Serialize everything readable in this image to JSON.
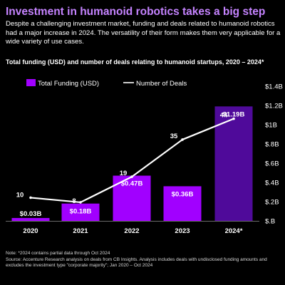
{
  "headline": "Investment in humanoid robotics takes a big step",
  "subhead": "Despite a challenging investment market, funding and deals related to humanoid robotics had a major increase in 2024. The versatility of their form makes them very applicable for a wide variety of use cases.",
  "footnotes": [
    "Note: *2024 contains partial data through Oct 2024",
    "Source: Accenture Research analysis on deals from CB Insights. Analysis includes deals with undisclosed funding amounts and excludes the investment type \"corporate majority\"; Jan 2020 – Oct 2024"
  ],
  "colors": {
    "background": "#000000",
    "headline": "#c583ff",
    "bar_main": "#a100ff",
    "bar_highlight": "#4f0a9a",
    "line": "#ffffff"
  },
  "chart_data": {
    "type": "bar",
    "title": "Total funding (USD) and number of deals relating to humanoid startups, 2020 – 2024*",
    "categories": [
      "2020",
      "2021",
      "2022",
      "2023",
      "2024*"
    ],
    "series": [
      {
        "name": "Total Funding (USD)",
        "type": "bar",
        "axis": "right",
        "values": [
          0.03,
          0.18,
          0.47,
          0.36,
          1.19
        ],
        "labels": [
          "$0.03B",
          "$0.18B",
          "$0.47B",
          "$0.36B",
          "$1.19B"
        ],
        "highlight_index": 4
      },
      {
        "name": "Number of Deals",
        "type": "line",
        "axis": "deals",
        "values": [
          10,
          8,
          19,
          35,
          44
        ],
        "labels": [
          "10",
          "8",
          "19",
          "35",
          "44"
        ]
      }
    ],
    "y_right": {
      "min": 0,
      "max": 1.4,
      "ticks": [
        0,
        0.2,
        0.4,
        0.6,
        0.8,
        1.0,
        1.2,
        1.4
      ],
      "tick_labels": [
        "$.B",
        "$.2B",
        "$.4B",
        "$.6B",
        "$.8B",
        "$1B",
        "$1.2B",
        "$1.4B"
      ]
    },
    "deals_range": [
      0,
      58
    ],
    "legend_position": "top-left",
    "grid": false
  }
}
